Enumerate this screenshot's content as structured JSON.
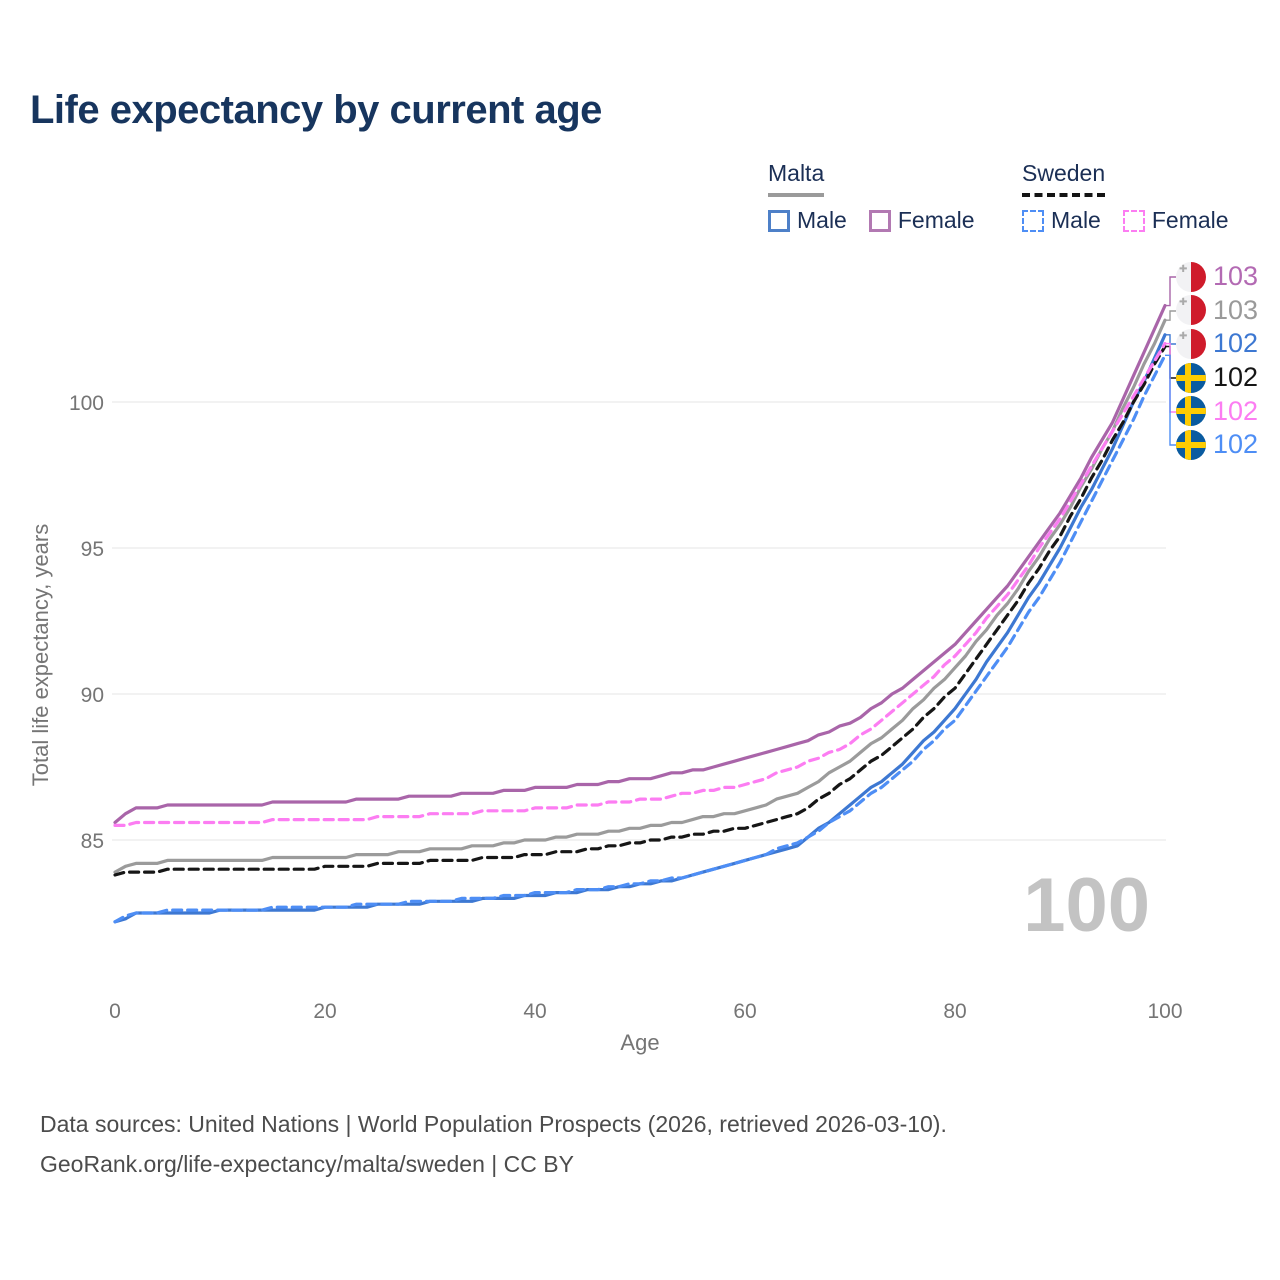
{
  "title": "Life expectancy by current age",
  "watermark": "100",
  "legend": {
    "malta": {
      "title": "Malta",
      "male": "Male",
      "female": "Female",
      "line_color": "#9a9a9a",
      "male_color": "#4e80c8",
      "female_color": "#b279b2"
    },
    "sweden": {
      "title": "Sweden",
      "male": "Male",
      "female": "Female",
      "line_color": "#141414",
      "male_color": "#4e8ef5",
      "female_color": "#fc7df2"
    }
  },
  "endpoint_labels": [
    {
      "value": "103",
      "flag": "malta",
      "series": "Malta Female",
      "color": "#b36ab3"
    },
    {
      "value": "103",
      "flag": "malta",
      "series": "Malta",
      "color": "#9a9a9a"
    },
    {
      "value": "102",
      "flag": "malta",
      "series": "Malta Male",
      "color": "#3d78d2"
    },
    {
      "value": "102",
      "flag": "sweden",
      "series": "Sweden",
      "color": "#161616"
    },
    {
      "value": "102",
      "flag": "sweden",
      "series": "Sweden Female",
      "color": "#fc7df2"
    },
    {
      "value": "102",
      "flag": "sweden",
      "series": "Sweden Male",
      "color": "#4e8ef5"
    }
  ],
  "footer": {
    "line1": "Data sources: United Nations | World Population Prospects (2026, retrieved 2026-03-10).",
    "line2": "GeoRank.org/life-expectancy/malta/sweden | CC BY"
  },
  "chart_data": {
    "type": "line",
    "title": "Life expectancy by current age",
    "xlabel": "Age",
    "ylabel": "Total life expectancy, years",
    "x_ticks": [
      0,
      20,
      40,
      60,
      80,
      100
    ],
    "y_ticks": [
      85,
      90,
      95,
      100
    ],
    "xlim": [
      0,
      100
    ],
    "ylim": [
      81.5,
      104.5
    ],
    "grid": "horizontal",
    "legend_position": "top-right",
    "ages": [
      0,
      2,
      5,
      10,
      15,
      20,
      25,
      30,
      35,
      40,
      45,
      50,
      55,
      60,
      65,
      70,
      75,
      80,
      85,
      90,
      95,
      100
    ],
    "series": [
      {
        "name": "Malta Female",
        "country": "Malta",
        "sex": "Female",
        "style": "solid",
        "color": "#a965a9",
        "end_label": 103,
        "values": [
          85.6,
          86.1,
          86.15,
          86.2,
          86.25,
          86.3,
          86.4,
          86.5,
          86.6,
          86.75,
          86.9,
          87.1,
          87.35,
          87.8,
          88.3,
          89.0,
          90.2,
          91.7,
          93.7,
          96.2,
          99.3,
          103.3
        ]
      },
      {
        "name": "Malta",
        "country": "Malta",
        "sex": "Both",
        "style": "solid",
        "color": "#9b9b9b",
        "end_label": 103,
        "values": [
          83.9,
          84.2,
          84.25,
          84.3,
          84.35,
          84.4,
          84.5,
          84.65,
          84.8,
          85.0,
          85.2,
          85.4,
          85.7,
          86.0,
          86.6,
          87.7,
          89.1,
          90.9,
          93.1,
          95.8,
          99.0,
          102.8
        ]
      },
      {
        "name": "Malta Male",
        "country": "Malta",
        "sex": "Male",
        "style": "solid",
        "color": "#3d78d2",
        "end_label": 102,
        "values": [
          82.2,
          82.45,
          82.5,
          82.55,
          82.6,
          82.65,
          82.75,
          82.85,
          82.95,
          83.1,
          83.25,
          83.45,
          83.75,
          84.25,
          84.8,
          86.2,
          87.6,
          89.5,
          92.1,
          95.0,
          98.4,
          102.3
        ]
      },
      {
        "name": "Sweden",
        "country": "Sweden",
        "sex": "Both",
        "style": "dashed",
        "color": "#161616",
        "end_label": 102,
        "values": [
          83.8,
          83.9,
          83.95,
          84.0,
          84.0,
          84.05,
          84.15,
          84.25,
          84.35,
          84.5,
          84.65,
          84.9,
          85.15,
          85.4,
          85.9,
          87.1,
          88.5,
          90.2,
          92.7,
          95.4,
          98.7,
          101.9
        ]
      },
      {
        "name": "Sweden Female",
        "country": "Sweden",
        "sex": "Female",
        "style": "dashed",
        "color": "#fc7df2",
        "end_label": 102,
        "values": [
          85.5,
          85.55,
          85.6,
          85.6,
          85.65,
          85.7,
          85.75,
          85.85,
          85.95,
          86.05,
          86.2,
          86.35,
          86.6,
          86.9,
          87.5,
          88.3,
          89.65,
          91.3,
          93.4,
          96.0,
          99.0,
          102.0
        ]
      },
      {
        "name": "Sweden Male",
        "country": "Sweden",
        "sex": "Male",
        "style": "dashed",
        "color": "#4e8ef5",
        "end_label": 102,
        "values": [
          82.2,
          82.5,
          82.55,
          82.6,
          82.65,
          82.7,
          82.8,
          82.9,
          83.0,
          83.15,
          83.3,
          83.5,
          83.8,
          84.3,
          84.9,
          86.0,
          87.4,
          89.1,
          91.6,
          94.5,
          98.0,
          101.6
        ]
      }
    ]
  }
}
